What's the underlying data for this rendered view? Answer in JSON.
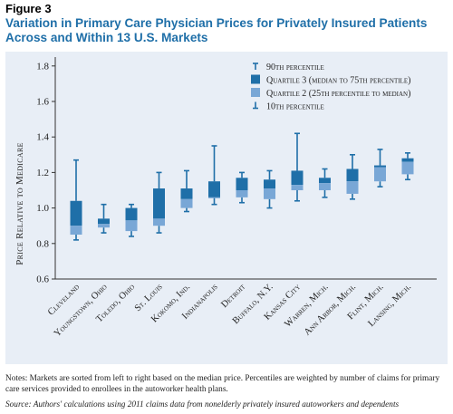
{
  "figure": {
    "label": "Figure 3",
    "title": "Variation in Primary Care Physician Prices for Privately Insured Patients Across and Within 13 U.S. Markets",
    "notes": "Notes: Markets are sorted from left to right based on the median price. Percentiles are weighted by number of claims for primary care services provided to enrollees in the autoworker health plans.",
    "source": "Source: Authors' calculations using 2011 claims data from nonelderly privately insured autoworkers and dependents"
  },
  "colors": {
    "q3": "#1f6fa8",
    "q2": "#79a7d6",
    "whisker": "#1f6fa8",
    "panel_bg": "#e8eef6"
  },
  "chart_data": {
    "type": "boxplot",
    "ylabel": "Price Relative to Medicare",
    "xlabel": "",
    "ylim": [
      0.6,
      1.85
    ],
    "yticks": [
      0.6,
      0.8,
      1.0,
      1.2,
      1.4,
      1.6,
      1.8
    ],
    "ytick_labels": [
      "0.6",
      "0.8",
      "1.0",
      "1.2",
      "1.4",
      "1.6",
      "1.8"
    ],
    "grid": false,
    "legend_position": "top-right",
    "legend": [
      {
        "key": "p90",
        "label": "90th percentile"
      },
      {
        "key": "q3",
        "label": "Quartile 3 (median to 75th percentile)"
      },
      {
        "key": "q2",
        "label": "Quartile 2 (25th percentile to median)"
      },
      {
        "key": "p10",
        "label": "10th percentile"
      }
    ],
    "categories": [
      "Cleveland",
      "Youngstown, Ohio",
      "Toledo, Ohio",
      "St. Louis",
      "Kokomo, Ind.",
      "Indianapolis",
      "Detroit",
      "Buffalo, N.Y.",
      "Kansas City",
      "Warren, Mich.",
      "Ann Arbor, Mich.",
      "Flint, Mich.",
      "Lansing, Mich."
    ],
    "p10": [
      0.82,
      0.86,
      0.84,
      0.86,
      0.98,
      1.02,
      1.03,
      1.0,
      1.04,
      1.06,
      1.05,
      1.12,
      1.16
    ],
    "p25": [
      0.85,
      0.89,
      0.87,
      0.9,
      1.0,
      1.06,
      1.06,
      1.05,
      1.1,
      1.1,
      1.08,
      1.15,
      1.19
    ],
    "median": [
      0.9,
      0.91,
      0.93,
      0.94,
      1.05,
      1.06,
      1.1,
      1.11,
      1.13,
      1.14,
      1.15,
      1.23,
      1.26
    ],
    "p75": [
      1.04,
      0.94,
      1.0,
      1.11,
      1.11,
      1.15,
      1.17,
      1.16,
      1.21,
      1.17,
      1.22,
      1.24,
      1.28
    ],
    "p90": [
      1.27,
      1.02,
      1.02,
      1.2,
      1.21,
      1.35,
      1.2,
      1.21,
      1.42,
      1.22,
      1.3,
      1.33,
      1.31
    ]
  }
}
